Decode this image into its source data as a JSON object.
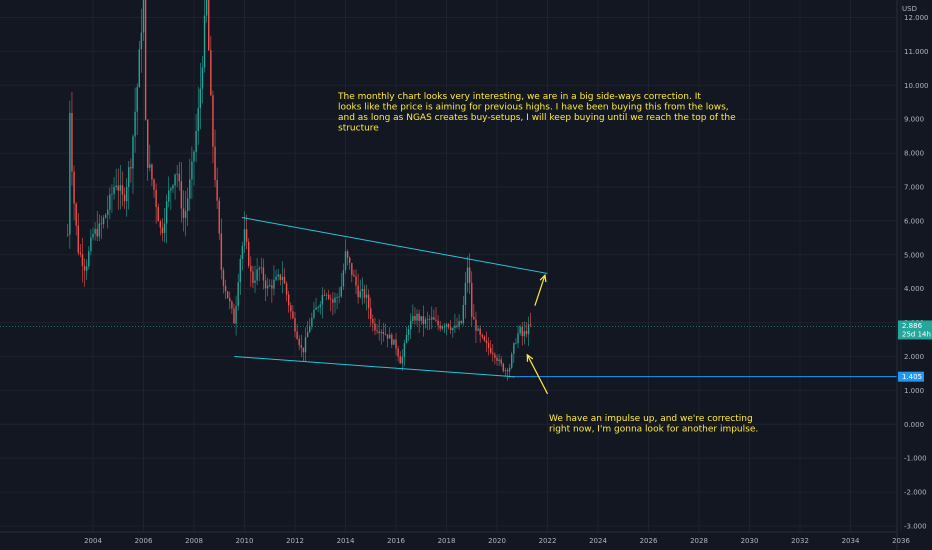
{
  "chart_data": {
    "type": "candlestick",
    "currency": "USD",
    "x_ticks": [
      "2004",
      "2006",
      "2008",
      "2010",
      "2012",
      "2014",
      "2016",
      "2018",
      "2020",
      "2022",
      "2024",
      "2026",
      "2028",
      "2030",
      "2032",
      "2034",
      "2036"
    ],
    "y_ticks": [
      "12.000",
      "11.000",
      "10.000",
      "9.000",
      "8.000",
      "7.000",
      "6.000",
      "5.000",
      "4.000",
      "3.000",
      "2.000",
      "1.000",
      "0.000",
      "-1.000",
      "-2.000",
      "-3.000"
    ],
    "ylim": [
      -3.1,
      12.3
    ],
    "xlim": [
      2002.2,
      2036.2
    ],
    "current_price": {
      "label": "2.886",
      "countdown": "25d 14h",
      "value": 2.886,
      "color": "#26a69a"
    },
    "support_level": {
      "label": "1.405",
      "value": 1.405,
      "color": "#2196f3"
    },
    "price_path": [
      [
        2003.0,
        5.6
      ],
      [
        2003.05,
        10.0
      ],
      [
        2003.2,
        7.0
      ],
      [
        2003.4,
        5.2
      ],
      [
        2003.7,
        4.6
      ],
      [
        2004.0,
        5.6
      ],
      [
        2004.3,
        5.8
      ],
      [
        2004.6,
        6.4
      ],
      [
        2004.9,
        7.2
      ],
      [
        2005.2,
        6.6
      ],
      [
        2005.5,
        7.8
      ],
      [
        2005.8,
        10.4
      ],
      [
        2006.0,
        12.8
      ],
      [
        2006.1,
        8.0
      ],
      [
        2006.4,
        7.0
      ],
      [
        2006.7,
        5.6
      ],
      [
        2007.0,
        6.8
      ],
      [
        2007.3,
        7.6
      ],
      [
        2007.6,
        6.0
      ],
      [
        2007.9,
        7.4
      ],
      [
        2008.2,
        9.4
      ],
      [
        2008.5,
        12.6
      ],
      [
        2008.7,
        8.8
      ],
      [
        2008.9,
        6.6
      ],
      [
        2009.1,
        4.4
      ],
      [
        2009.4,
        3.6
      ],
      [
        2009.6,
        3.0
      ],
      [
        2009.8,
        4.8
      ],
      [
        2010.0,
        5.6
      ],
      [
        2010.3,
        4.2
      ],
      [
        2010.6,
        4.6
      ],
      [
        2010.9,
        4.0
      ],
      [
        2011.2,
        4.2
      ],
      [
        2011.5,
        4.4
      ],
      [
        2011.8,
        3.4
      ],
      [
        2012.1,
        2.6
      ],
      [
        2012.3,
        2.1
      ],
      [
        2012.6,
        3.0
      ],
      [
        2012.9,
        3.5
      ],
      [
        2013.2,
        4.0
      ],
      [
        2013.5,
        3.6
      ],
      [
        2013.8,
        3.9
      ],
      [
        2014.0,
        5.0
      ],
      [
        2014.2,
        4.6
      ],
      [
        2014.5,
        3.9
      ],
      [
        2014.8,
        3.8
      ],
      [
        2015.1,
        2.9
      ],
      [
        2015.4,
        2.8
      ],
      [
        2015.7,
        2.6
      ],
      [
        2016.0,
        2.3
      ],
      [
        2016.2,
        1.8
      ],
      [
        2016.5,
        2.9
      ],
      [
        2016.8,
        3.2
      ],
      [
        2017.1,
        3.0
      ],
      [
        2017.4,
        3.1
      ],
      [
        2017.7,
        2.9
      ],
      [
        2018.0,
        3.0
      ],
      [
        2018.3,
        2.8
      ],
      [
        2018.6,
        3.0
      ],
      [
        2018.85,
        4.8
      ],
      [
        2019.0,
        3.2
      ],
      [
        2019.3,
        2.6
      ],
      [
        2019.6,
        2.3
      ],
      [
        2019.9,
        2.1
      ],
      [
        2020.1,
        1.8
      ],
      [
        2020.3,
        1.6
      ],
      [
        2020.5,
        1.7
      ],
      [
        2020.7,
        2.4
      ],
      [
        2020.9,
        2.8
      ],
      [
        2021.0,
        2.6
      ],
      [
        2021.2,
        2.8
      ],
      [
        2021.35,
        2.9
      ]
    ],
    "trendlines": [
      {
        "name": "upper-channel-line",
        "from": [
          2009.9,
          6.1
        ],
        "to": [
          2022.0,
          4.45
        ],
        "color": "#26c6da"
      },
      {
        "name": "lower-channel-line",
        "from": [
          2009.6,
          2.0
        ],
        "to": [
          2020.7,
          1.4
        ],
        "color": "#26c6da"
      }
    ],
    "arrows": [
      {
        "name": "impulse-arrow-up",
        "from": [
          2021.5,
          3.5
        ],
        "to": [
          2021.9,
          4.4
        ]
      },
      {
        "name": "correction-arrow",
        "from": [
          2022.0,
          0.9
        ],
        "to": [
          2021.2,
          2.05
        ]
      }
    ],
    "annotations": [
      {
        "name": "top-note",
        "lines": [
          "The monthly chart looks very interesting, we are in a big side-ways correction. It",
          "looks like the price is aiming for previous highs. I have been buying this from the lows,",
          "and as long as NGAS creates buy-setups, I will keep buying until we reach the top of the",
          "structure"
        ]
      },
      {
        "name": "bottom-note",
        "lines": [
          "We have an impulse up, and we're correcting",
          "right now, I'm gonna look for another impulse."
        ]
      }
    ],
    "colors": {
      "background": "#131722",
      "grid": "#1e222d",
      "up": "#26a69a",
      "down": "#ef5350",
      "annotation": "#ffeb3b"
    }
  }
}
